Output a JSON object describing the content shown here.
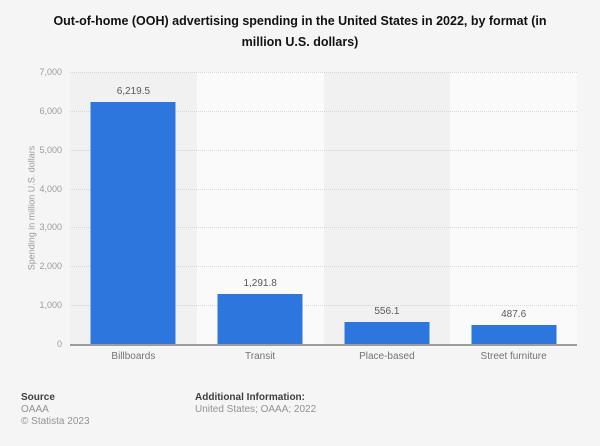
{
  "title": "Out-of-home (OOH) advertising spending in the United States in 2022, by format (in million U.S. dollars)",
  "chart_data": {
    "type": "bar",
    "title": "Out-of-home (OOH) advertising spending in the United States in 2022, by format (in million U.S. dollars)",
    "categories": [
      "Billboards",
      "Transit",
      "Place-based",
      "Street furniture"
    ],
    "values": [
      6219.5,
      1291.8,
      556.1,
      487.6
    ],
    "value_labels": [
      "6,219.5",
      "1,291.8",
      "556.1",
      "487.6"
    ],
    "xlabel": "",
    "ylabel": "Spending in million U.S. dollars",
    "ylim": [
      0,
      7000
    ],
    "yticks": [
      0,
      1000,
      2000,
      3000,
      4000,
      5000,
      6000,
      7000
    ],
    "ytick_labels": [
      "0",
      "1,000",
      "2,000",
      "3,000",
      "4,000",
      "5,000",
      "6,000",
      "7,000"
    ],
    "grid": "horizontal-dotted",
    "legend": "none",
    "bar_color": "#2d76dd",
    "plot_band_colors": [
      "#f1f1f1",
      "#fafafa"
    ]
  },
  "footer": {
    "source_heading": "Source",
    "source_name": "OAAA",
    "copyright": "© Statista 2023",
    "additional_heading": "Additional Information:",
    "additional_value": "United States; OAAA; 2022"
  }
}
